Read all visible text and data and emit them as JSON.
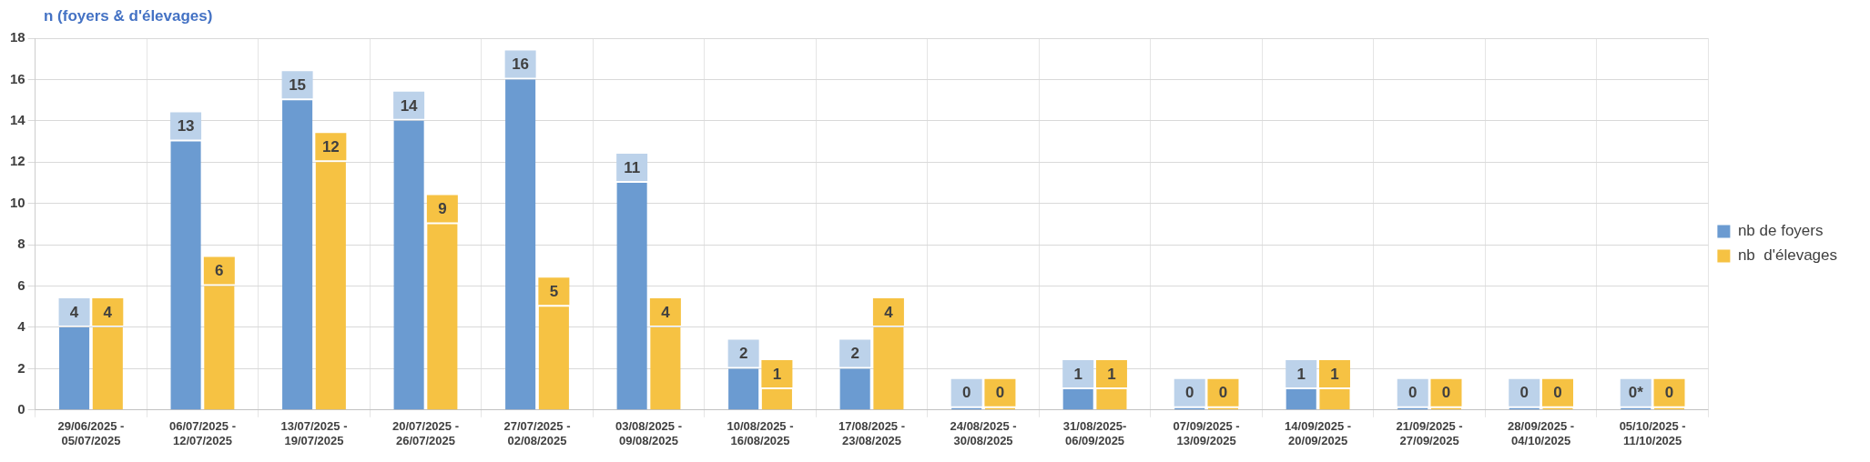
{
  "chart_data": {
    "type": "bar",
    "ylabel": "n (foyers & d'élevages)",
    "categories": [
      "29/06/2025 - 05/07/2025",
      "06/07/2025 - 12/07/2025",
      "13/07/2025 - 19/07/2025",
      "20/07/2025 - 26/07/2025",
      "27/07/2025 - 02/08/2025",
      "03/08/2025 - 09/08/2025",
      "10/08/2025 - 16/08/2025",
      "17/08/2025 - 23/08/2025",
      "24/08/2025 - 30/08/2025",
      "31/08/2025-06/09/2025",
      "07/09/2025 - 13/09/2025",
      "14/09/2025 - 20/09/2025",
      "21/09/2025 - 27/09/2025",
      "28/09/2025 - 04/10/2025",
      "05/10/2025 - 11/10/2025"
    ],
    "series": [
      {
        "name": "nb de foyers",
        "color": "#6b9bd1",
        "values": [
          4,
          13,
          15,
          14,
          16,
          11,
          2,
          2,
          0,
          1,
          0,
          1,
          0,
          0,
          0
        ],
        "value_labels": [
          "4",
          "13",
          "15",
          "14",
          "16",
          "11",
          "2",
          "2",
          "0",
          "1",
          "0",
          "1",
          "0",
          "0",
          "0*"
        ]
      },
      {
        "name": "nb  d'élevages",
        "color": "#f6c243",
        "values": [
          4,
          6,
          12,
          9,
          5,
          4,
          1,
          4,
          0,
          1,
          0,
          1,
          0,
          0,
          0
        ],
        "value_labels": [
          "4",
          "6",
          "12",
          "9",
          "5",
          "4",
          "1",
          "4",
          "0",
          "1",
          "0",
          "1",
          "0",
          "0",
          "0"
        ]
      }
    ],
    "ylim": [
      0,
      18
    ],
    "yticks": [
      0,
      2,
      4,
      6,
      8,
      10,
      12,
      14,
      16,
      18
    ],
    "grid": true,
    "legend": "right"
  }
}
